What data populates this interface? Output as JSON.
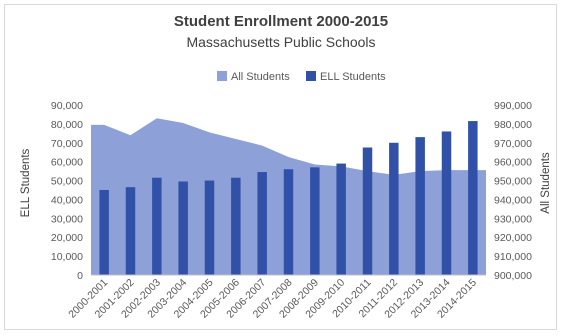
{
  "chart_data": {
    "type": "bar+area",
    "title": "Student Enrollment 2000-2015",
    "subtitle": "Massachusetts Public Schools",
    "categories": [
      "2000-2001",
      "2001-2002",
      "2002-2003",
      "2003-2004",
      "2004-2005",
      "2005-2006",
      "2006-2007",
      "2007-2008",
      "2008-2009",
      "2009-2010",
      "2010-2011",
      "2011-2012",
      "2012-2013",
      "2013-2014",
      "2014-2015"
    ],
    "series": [
      {
        "name": "All Students",
        "kind": "area",
        "axis": "right",
        "color": "#8ea0d8",
        "values": [
          979500,
          974000,
          983000,
          980500,
          975500,
          972000,
          968500,
          962500,
          958500,
          957500,
          955000,
          953000,
          955000,
          955500,
          955500
        ]
      },
      {
        "name": "ELL Students",
        "kind": "bar",
        "axis": "left",
        "color": "#3151a8",
        "values": [
          45000,
          46500,
          51500,
          49500,
          50000,
          51500,
          54500,
          56000,
          57000,
          59000,
          67500,
          70000,
          73000,
          76000,
          81500
        ]
      }
    ],
    "ylabel_left": "ELL Students",
    "ylabel_right": "All Students",
    "ylim_left": [
      0,
      90000
    ],
    "ylim_right": [
      900000,
      990000
    ],
    "yticks_left": [
      "0",
      "10,000",
      "20,000",
      "30,000",
      "40,000",
      "50,000",
      "60,000",
      "70,000",
      "80,000",
      "90,000"
    ],
    "yticks_right": [
      "900,000",
      "910,000",
      "920,000",
      "930,000",
      "940,000",
      "950,000",
      "960,000",
      "970,000",
      "980,000",
      "990,000"
    ],
    "grid": false,
    "legend_position": "top"
  }
}
